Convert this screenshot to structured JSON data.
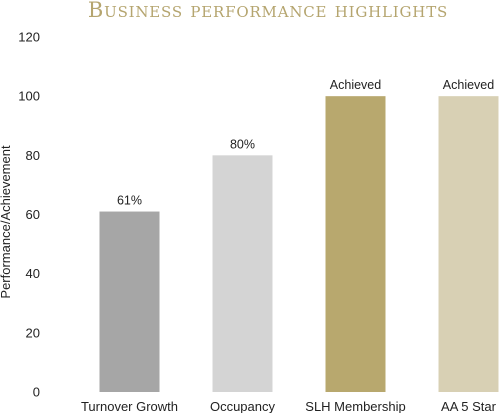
{
  "chart_data": {
    "type": "bar",
    "title": "Business performance highlights",
    "ylabel": "Performance/Achievement",
    "xlabel": "",
    "ylim": [
      0,
      120
    ],
    "yticks": [
      0,
      20,
      40,
      60,
      80,
      100,
      120
    ],
    "grid": false,
    "categories": [
      "Turnover Growth",
      "Occupancy",
      "SLH Membership",
      "AA 5 Star"
    ],
    "values": [
      61,
      80,
      100,
      100
    ],
    "data_labels": [
      "61%",
      "80%",
      "Achieved",
      "Achieved"
    ],
    "colors": [
      "#a6a6a6",
      "#d4d4d4",
      "#b8a86e",
      "#d8d0b4"
    ]
  }
}
